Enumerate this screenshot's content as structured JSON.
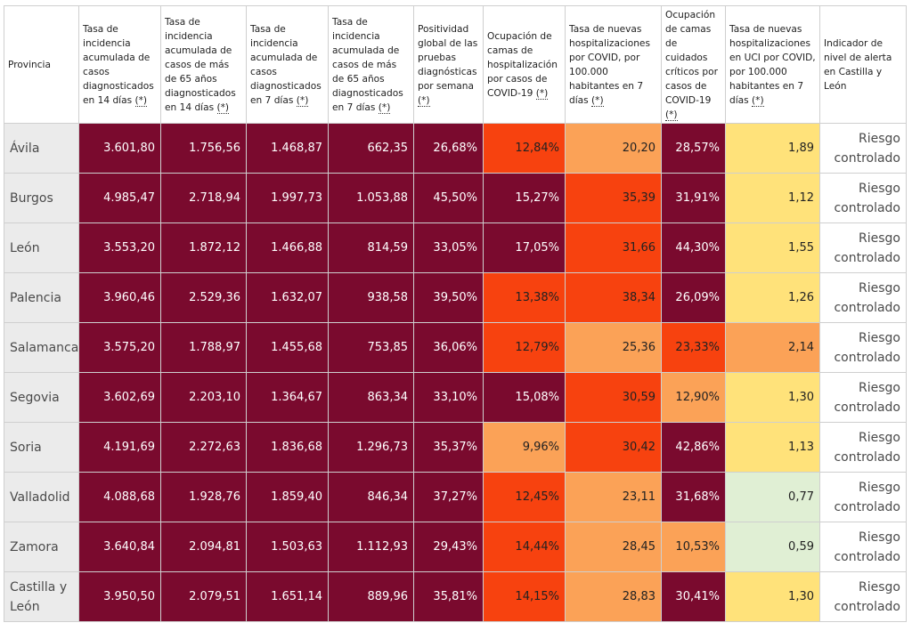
{
  "headers": [
    {
      "text": "Provincia",
      "star": ""
    },
    {
      "text": "Tasa de incidencia acumulada de casos diagnosticados en 14 días ",
      "star": "(*)"
    },
    {
      "text": "Tasa de incidencia acumulada de casos de más de 65 años diagnosticados en 14 días ",
      "star": "(*)"
    },
    {
      "text": "Tasa de incidencia acumulada de casos diagnosticados en 7 días ",
      "star": "(*)"
    },
    {
      "text": "Tasa de incidencia acumulada de casos de más de 65 años diagnosticados en 7 días ",
      "star": "(*)"
    },
    {
      "text": "Positividad global de las pruebas diagnósticas por semana ",
      "star": "(*)"
    },
    {
      "text": "Ocupación de camas de hospitalización por casos de COVID-19 ",
      "star": "(*)"
    },
    {
      "text": "Tasa de nuevas hospitalizaciones por COVID, por 100.000 habitantes en 7 días ",
      "star": "(*)"
    },
    {
      "text": "Ocupación de camas de cuidados críticos por casos de COVID-19 ",
      "star": "(*)"
    },
    {
      "text": "Tasa de nuevas hospitalizaciones en UCI por COVID, por 100.000 habitantes en 7 días ",
      "star": "(*)"
    },
    {
      "text": "Indicador de nivel de alerta en Castilla y León",
      "star": ""
    }
  ],
  "colors": {
    "darkred": "#7a0a2e",
    "orange": "#f7420f",
    "lightorange": "#fba257",
    "yellow": "#ffe27a",
    "lightgreen": "#e0efd4"
  },
  "rows": [
    {
      "province": "Ávila",
      "alert": "Riesgo controlado",
      "cells": [
        {
          "v": "3.601,80",
          "c": "darkred"
        },
        {
          "v": "1.756,56",
          "c": "darkred"
        },
        {
          "v": "1.468,87",
          "c": "darkred"
        },
        {
          "v": "662,35",
          "c": "darkred"
        },
        {
          "v": "26,68%",
          "c": "darkred"
        },
        {
          "v": "12,84%",
          "c": "orange"
        },
        {
          "v": "20,20",
          "c": "lightorange"
        },
        {
          "v": "28,57%",
          "c": "darkred"
        },
        {
          "v": "1,89",
          "c": "yellow"
        }
      ]
    },
    {
      "province": "Burgos",
      "alert": "Riesgo controlado",
      "cells": [
        {
          "v": "4.985,47",
          "c": "darkred"
        },
        {
          "v": "2.718,94",
          "c": "darkred"
        },
        {
          "v": "1.997,73",
          "c": "darkred"
        },
        {
          "v": "1.053,88",
          "c": "darkred"
        },
        {
          "v": "45,50%",
          "c": "darkred"
        },
        {
          "v": "15,27%",
          "c": "darkred"
        },
        {
          "v": "35,39",
          "c": "orange"
        },
        {
          "v": "31,91%",
          "c": "darkred"
        },
        {
          "v": "1,12",
          "c": "yellow"
        }
      ]
    },
    {
      "province": "León",
      "alert": "Riesgo controlado",
      "cells": [
        {
          "v": "3.553,20",
          "c": "darkred"
        },
        {
          "v": "1.872,12",
          "c": "darkred"
        },
        {
          "v": "1.466,88",
          "c": "darkred"
        },
        {
          "v": "814,59",
          "c": "darkred"
        },
        {
          "v": "33,05%",
          "c": "darkred"
        },
        {
          "v": "17,05%",
          "c": "darkred"
        },
        {
          "v": "31,66",
          "c": "orange"
        },
        {
          "v": "44,30%",
          "c": "darkred"
        },
        {
          "v": "1,55",
          "c": "yellow"
        }
      ]
    },
    {
      "province": "Palencia",
      "alert": "Riesgo controlado",
      "cells": [
        {
          "v": "3.960,46",
          "c": "darkred"
        },
        {
          "v": "2.529,36",
          "c": "darkred"
        },
        {
          "v": "1.632,07",
          "c": "darkred"
        },
        {
          "v": "938,58",
          "c": "darkred"
        },
        {
          "v": "39,50%",
          "c": "darkred"
        },
        {
          "v": "13,38%",
          "c": "orange"
        },
        {
          "v": "38,34",
          "c": "orange"
        },
        {
          "v": "26,09%",
          "c": "darkred"
        },
        {
          "v": "1,26",
          "c": "yellow"
        }
      ]
    },
    {
      "province": "Salamanca",
      "alert": "Riesgo controlado",
      "cells": [
        {
          "v": "3.575,20",
          "c": "darkred"
        },
        {
          "v": "1.788,97",
          "c": "darkred"
        },
        {
          "v": "1.455,68",
          "c": "darkred"
        },
        {
          "v": "753,85",
          "c": "darkred"
        },
        {
          "v": "36,06%",
          "c": "darkred"
        },
        {
          "v": "12,79%",
          "c": "orange"
        },
        {
          "v": "25,36",
          "c": "lightorange"
        },
        {
          "v": "23,33%",
          "c": "orange"
        },
        {
          "v": "2,14",
          "c": "lightorange"
        }
      ]
    },
    {
      "province": "Segovia",
      "alert": "Riesgo controlado",
      "cells": [
        {
          "v": "3.602,69",
          "c": "darkred"
        },
        {
          "v": "2.203,10",
          "c": "darkred"
        },
        {
          "v": "1.364,67",
          "c": "darkred"
        },
        {
          "v": "863,34",
          "c": "darkred"
        },
        {
          "v": "33,10%",
          "c": "darkred"
        },
        {
          "v": "15,08%",
          "c": "darkred"
        },
        {
          "v": "30,59",
          "c": "orange"
        },
        {
          "v": "12,90%",
          "c": "lightorange"
        },
        {
          "v": "1,30",
          "c": "yellow"
        }
      ]
    },
    {
      "province": "Soria",
      "alert": "Riesgo controlado",
      "cells": [
        {
          "v": "4.191,69",
          "c": "darkred"
        },
        {
          "v": "2.272,63",
          "c": "darkred"
        },
        {
          "v": "1.836,68",
          "c": "darkred"
        },
        {
          "v": "1.296,73",
          "c": "darkred"
        },
        {
          "v": "35,37%",
          "c": "darkred"
        },
        {
          "v": "9,96%",
          "c": "lightorange"
        },
        {
          "v": "30,42",
          "c": "orange"
        },
        {
          "v": "42,86%",
          "c": "darkred"
        },
        {
          "v": "1,13",
          "c": "yellow"
        }
      ]
    },
    {
      "province": "Valladolid",
      "alert": "Riesgo controlado",
      "cells": [
        {
          "v": "4.088,68",
          "c": "darkred"
        },
        {
          "v": "1.928,76",
          "c": "darkred"
        },
        {
          "v": "1.859,40",
          "c": "darkred"
        },
        {
          "v": "846,34",
          "c": "darkred"
        },
        {
          "v": "37,27%",
          "c": "darkred"
        },
        {
          "v": "12,45%",
          "c": "orange"
        },
        {
          "v": "23,11",
          "c": "lightorange"
        },
        {
          "v": "31,68%",
          "c": "darkred"
        },
        {
          "v": "0,77",
          "c": "lightgreen"
        }
      ]
    },
    {
      "province": "Zamora",
      "alert": "Riesgo controlado",
      "cells": [
        {
          "v": "3.640,84",
          "c": "darkred"
        },
        {
          "v": "2.094,81",
          "c": "darkred"
        },
        {
          "v": "1.503,63",
          "c": "darkred"
        },
        {
          "v": "1.112,93",
          "c": "darkred"
        },
        {
          "v": "29,43%",
          "c": "darkred"
        },
        {
          "v": "14,44%",
          "c": "orange"
        },
        {
          "v": "28,45",
          "c": "lightorange"
        },
        {
          "v": "10,53%",
          "c": "lightorange"
        },
        {
          "v": "0,59",
          "c": "lightgreen"
        }
      ]
    },
    {
      "province": "Castilla y León",
      "alert": "Riesgo controlado",
      "cells": [
        {
          "v": "3.950,50",
          "c": "darkred"
        },
        {
          "v": "2.079,51",
          "c": "darkred"
        },
        {
          "v": "1.651,14",
          "c": "darkred"
        },
        {
          "v": "889,96",
          "c": "darkred"
        },
        {
          "v": "35,81%",
          "c": "darkred"
        },
        {
          "v": "14,15%",
          "c": "orange"
        },
        {
          "v": "28,83",
          "c": "lightorange"
        },
        {
          "v": "30,41%",
          "c": "darkred"
        },
        {
          "v": "1,30",
          "c": "yellow"
        }
      ]
    }
  ]
}
